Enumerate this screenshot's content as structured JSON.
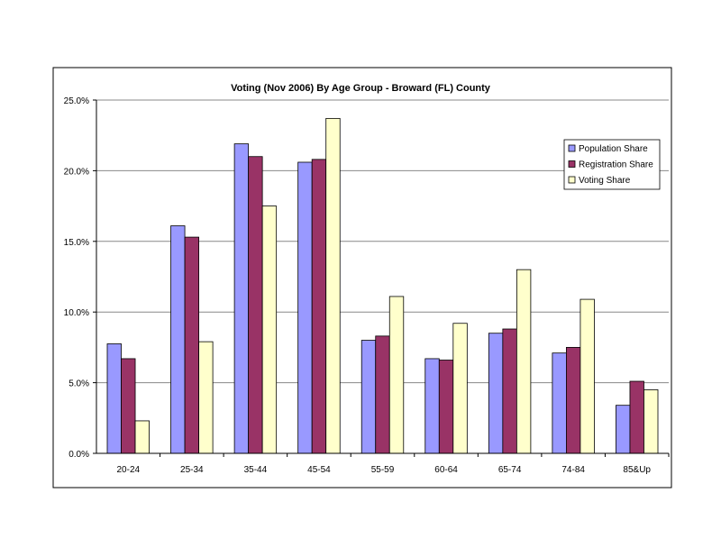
{
  "chart_data": {
    "type": "bar",
    "title": "Voting (Nov 2006) By Age Group - Broward (FL) County",
    "xlabel": "",
    "ylabel": "",
    "ylim": [
      0,
      25
    ],
    "yticks": [
      "0.0%",
      "5.0%",
      "10.0%",
      "15.0%",
      "20.0%",
      "25.0%"
    ],
    "grid": true,
    "legend_position": "top-right",
    "categories": [
      "20-24",
      "25-34",
      "35-44",
      "45-54",
      "55-59",
      "60-64",
      "65-74",
      "74-84",
      "85&Up"
    ],
    "series": [
      {
        "name": "Population Share",
        "color": "#9999FF",
        "values": [
          7.75,
          16.1,
          21.9,
          20.6,
          8.0,
          6.7,
          8.5,
          7.1,
          3.4
        ]
      },
      {
        "name": "Registration Share",
        "color": "#993366",
        "values": [
          6.7,
          15.3,
          21.0,
          20.8,
          8.3,
          6.6,
          8.8,
          7.5,
          5.1
        ]
      },
      {
        "name": "Voting Share",
        "color": "#FFFFCC",
        "values": [
          2.3,
          7.9,
          17.5,
          23.7,
          11.1,
          9.2,
          13.0,
          10.9,
          4.5
        ]
      }
    ]
  }
}
